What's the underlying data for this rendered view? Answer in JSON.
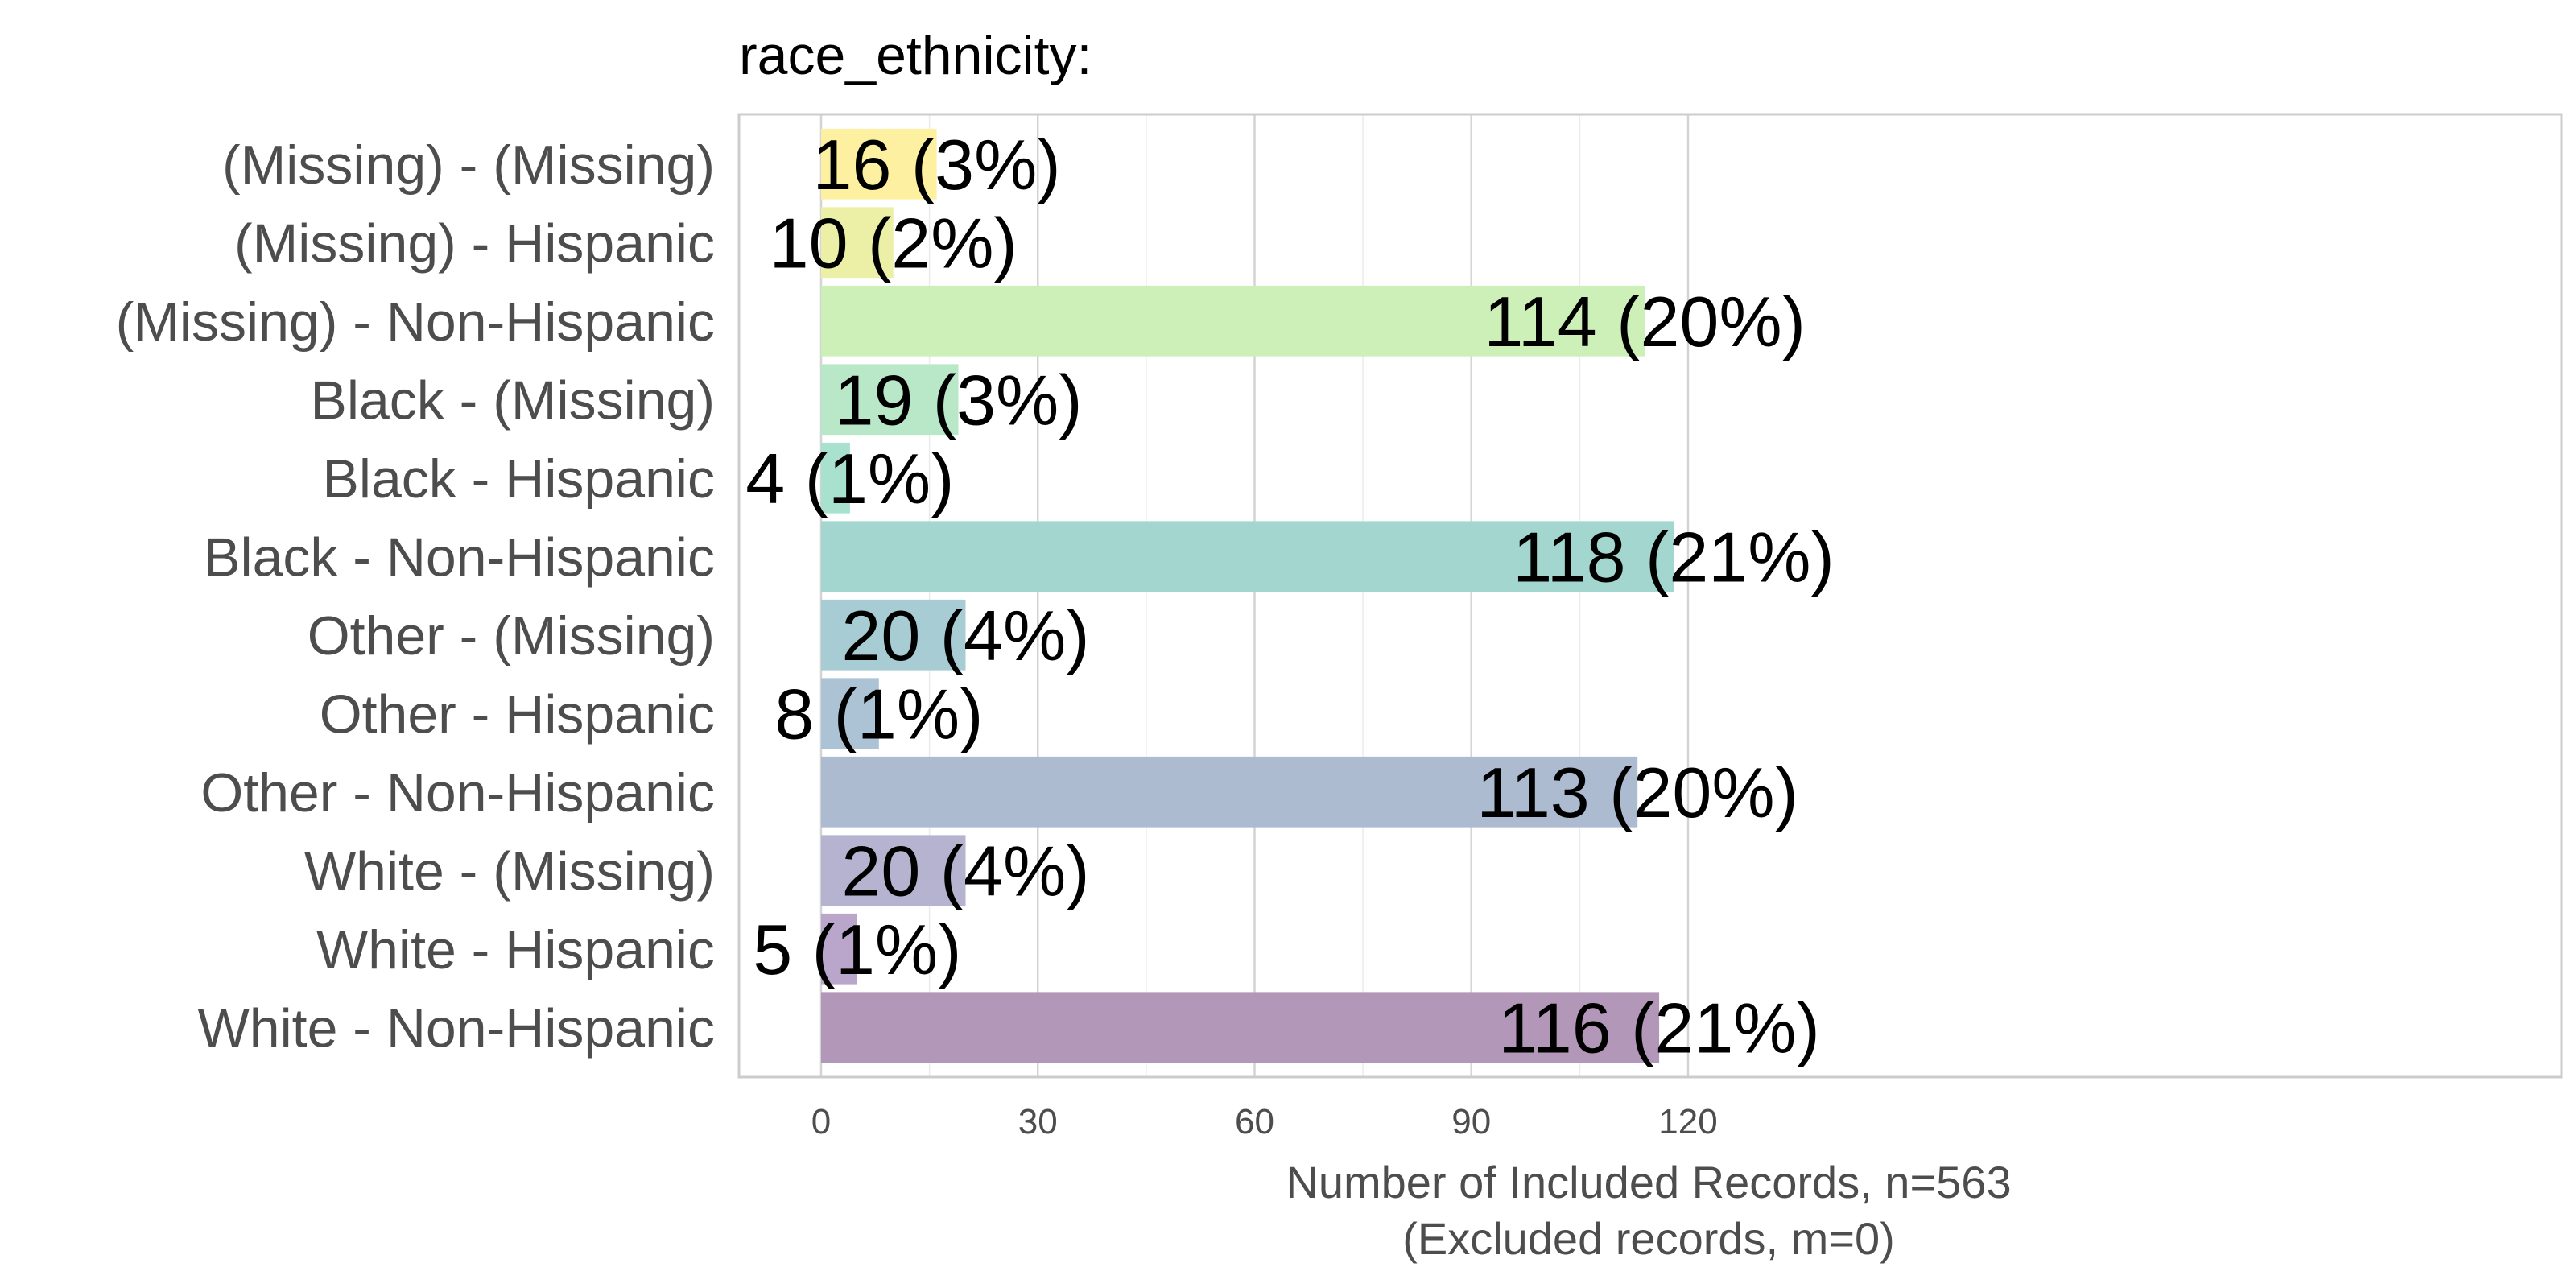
{
  "chart_data": {
    "type": "bar",
    "orientation": "horizontal",
    "title": "race_ethnicity:",
    "xlabel": "Number of Included Records, n=563",
    "xlabel_sub": "(Excluded records, m=0)",
    "ylabel": "",
    "xlim": [
      0,
      122
    ],
    "x_ticks": [
      0,
      30,
      60,
      90,
      120
    ],
    "grid": true,
    "legend": "none",
    "categories": [
      "(Missing) - (Missing)",
      "(Missing) - Hispanic",
      "(Missing) - Non-Hispanic",
      "Black - (Missing)",
      "Black - Hispanic",
      "Black - Non-Hispanic",
      "Other - (Missing)",
      "Other - Hispanic",
      "Other - Non-Hispanic",
      "White - (Missing)",
      "White - Hispanic",
      "White - Non-Hispanic"
    ],
    "values": [
      16,
      10,
      114,
      19,
      4,
      118,
      20,
      8,
      113,
      20,
      5,
      116
    ],
    "data_labels": [
      "16 (3%)",
      "10 (2%)",
      "114 (20%)",
      "19 (3%)",
      "4 (1%)",
      "118 (21%)",
      "20 (4%)",
      "8 (1%)",
      "113 (20%)",
      "20 (4%)",
      "5 (1%)",
      "116 (21%)"
    ],
    "colors": [
      "#fdf0a0",
      "#ecf0a6",
      "#cdefb8",
      "#b9e8c8",
      "#a8e2cf",
      "#a2d6cf",
      "#a8ccd4",
      "#acc2d5",
      "#acbbd0",
      "#b5b3d0",
      "#bba6cb",
      "#b297b8"
    ]
  }
}
